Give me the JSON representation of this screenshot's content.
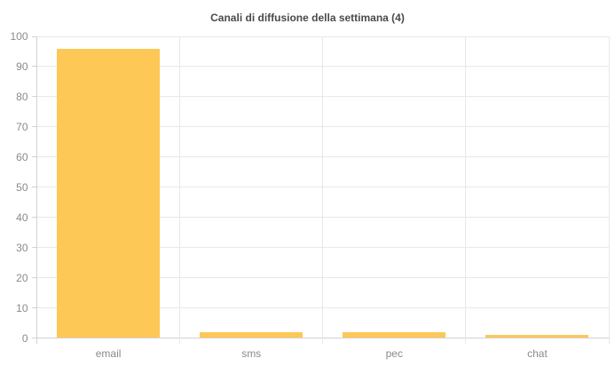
{
  "chart_data": {
    "type": "bar",
    "title": "Canali di diffusione della settimana (4)",
    "categories": [
      "email",
      "sms",
      "pec",
      "chat"
    ],
    "values": [
      96,
      2,
      2,
      1
    ],
    "xlabel": "",
    "ylabel": "",
    "ylim": [
      0,
      100
    ],
    "yticks": [
      0,
      10,
      20,
      30,
      40,
      50,
      60,
      70,
      80,
      90,
      100
    ],
    "grid": true,
    "legend": false,
    "colors": {
      "bar_fill": "#fdc855",
      "gridline": "#e8e8e8",
      "axis_line": "#d2d2d2",
      "tick_label": "#8a8a8a",
      "title": "#4a4a4a",
      "background": "#ffffff"
    }
  }
}
